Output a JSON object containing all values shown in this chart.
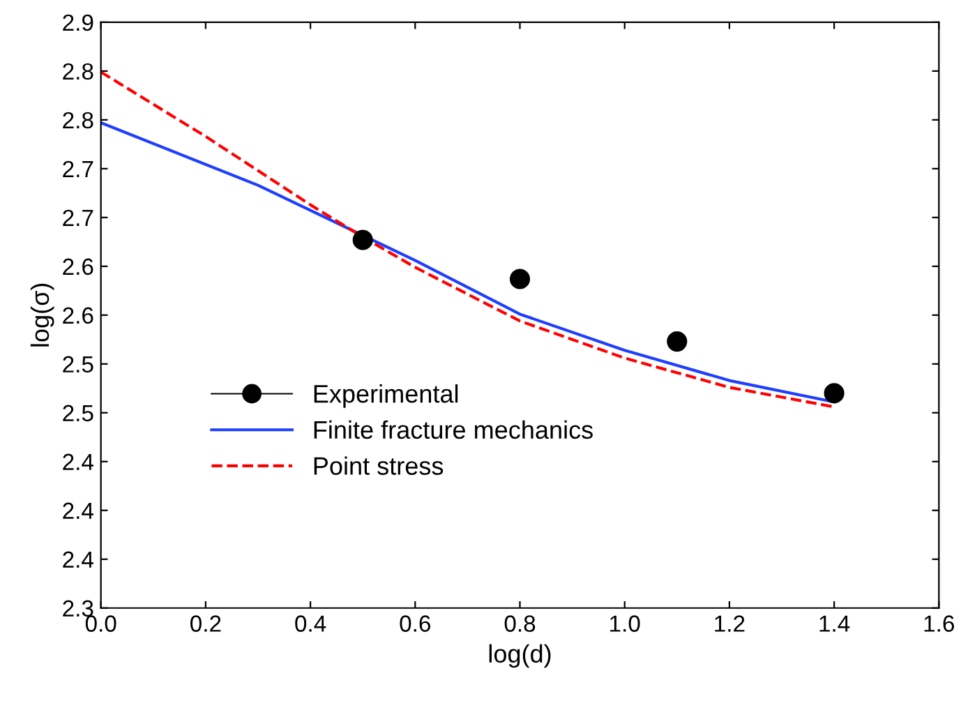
{
  "chart_data": {
    "type": "line",
    "xlabel": "log(d)",
    "ylabel": "log(σ)",
    "xlim": [
      0.0,
      1.6
    ],
    "ylim": [
      2.3,
      2.9
    ],
    "xticks": [
      {
        "value": 0.0,
        "label": "0.0"
      },
      {
        "value": 0.2,
        "label": "0.2"
      },
      {
        "value": 0.4,
        "label": "0.4"
      },
      {
        "value": 0.6,
        "label": "0.6"
      },
      {
        "value": 0.8,
        "label": "0.8"
      },
      {
        "value": 1.0,
        "label": "1.0"
      },
      {
        "value": 1.2,
        "label": "1.2"
      },
      {
        "value": 1.4,
        "label": "1.4"
      },
      {
        "value": 1.6,
        "label": "1.6"
      }
    ],
    "yticks": [
      {
        "value": 2.3,
        "label": "2.3"
      },
      {
        "value": 2.35,
        "label": "2.4"
      },
      {
        "value": 2.4,
        "label": "2.4"
      },
      {
        "value": 2.45,
        "label": "2.4"
      },
      {
        "value": 2.5,
        "label": "2.5"
      },
      {
        "value": 2.55,
        "label": "2.5"
      },
      {
        "value": 2.6,
        "label": "2.6"
      },
      {
        "value": 2.65,
        "label": "2.6"
      },
      {
        "value": 2.7,
        "label": "2.7"
      },
      {
        "value": 2.75,
        "label": "2.7"
      },
      {
        "value": 2.8,
        "label": "2.8"
      },
      {
        "value": 2.85,
        "label": "2.8"
      },
      {
        "value": 2.9,
        "label": "2.9"
      }
    ],
    "grid": false,
    "legend": "bottom",
    "series": [
      {
        "name": "Experimental",
        "type": "scatter",
        "color": "#000000",
        "marker": "circle",
        "x": [
          0.5,
          0.8,
          1.1,
          1.4
        ],
        "values": [
          2.677,
          2.637,
          2.573,
          2.52
        ]
      },
      {
        "name": "Finite fracture mechanics",
        "color": "#1f3fff",
        "line_style": "solid",
        "x": [
          0,
          0.3,
          0.6,
          0.8,
          1.0,
          1.2,
          1.4
        ],
        "values": [
          2.797,
          2.733,
          2.656,
          2.601,
          2.564,
          2.533,
          2.511
        ]
      },
      {
        "name": "Point stress",
        "color": "#ff0000",
        "line_style": "dashed",
        "x": [
          0,
          0.2,
          0.4,
          0.5,
          0.6,
          0.8,
          1.0,
          1.2,
          1.4
        ],
        "values": [
          2.849,
          2.783,
          2.713,
          2.68,
          2.649,
          2.594,
          2.556,
          2.526,
          2.506
        ]
      }
    ]
  }
}
